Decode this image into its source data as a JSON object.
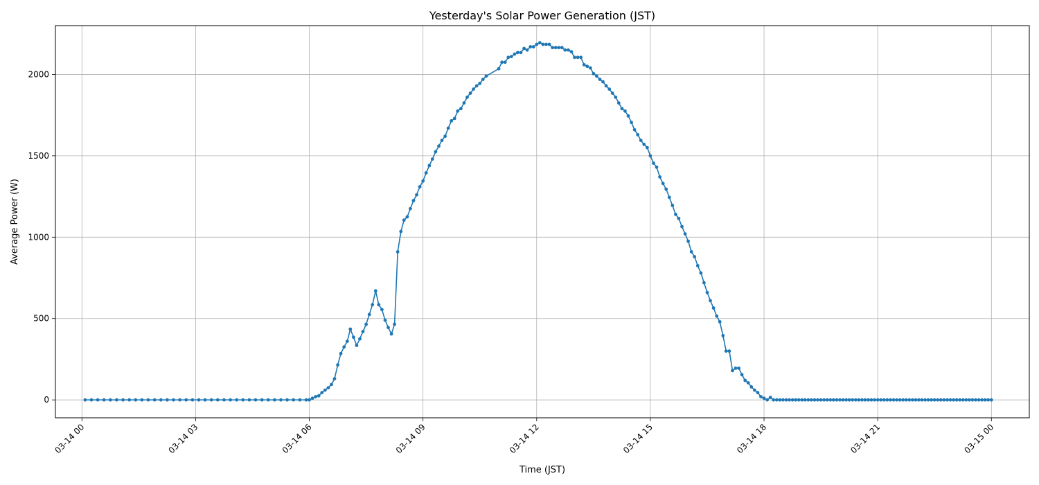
{
  "chart_data": {
    "type": "line",
    "title": "Yesterday's Solar Power Generation (JST)",
    "xlabel": "Time (JST)",
    "ylabel": "Average Power (W)",
    "x_unit": "hours on 03-14 (JST)",
    "xlim": [
      -0.7,
      25.0
    ],
    "ylim": [
      -110,
      2300
    ],
    "x_ticks": [
      {
        "value": 0,
        "label": "03-14 00"
      },
      {
        "value": 3,
        "label": "03-14 03"
      },
      {
        "value": 6,
        "label": "03-14 06"
      },
      {
        "value": 9,
        "label": "03-14 09"
      },
      {
        "value": 12,
        "label": "03-14 12"
      },
      {
        "value": 15,
        "label": "03-14 15"
      },
      {
        "value": 18,
        "label": "03-14 18"
      },
      {
        "value": 21,
        "label": "03-14 21"
      },
      {
        "value": 24,
        "label": "03-15 00"
      }
    ],
    "y_ticks": [
      0,
      500,
      1000,
      1500,
      2000
    ],
    "grid": true,
    "legend": "none",
    "color": "#1f77b4",
    "marker": "circle",
    "series": [
      {
        "points": [
          [
            0.0833,
            0
          ],
          [
            0.25,
            0
          ],
          [
            0.4167,
            0
          ],
          [
            0.5833,
            0
          ],
          [
            0.75,
            0
          ],
          [
            0.9167,
            0
          ],
          [
            1.0833,
            0
          ],
          [
            1.25,
            0
          ],
          [
            1.4167,
            0
          ],
          [
            1.5833,
            0
          ],
          [
            1.75,
            0
          ],
          [
            1.9167,
            0
          ],
          [
            2.0833,
            0
          ],
          [
            2.25,
            0
          ],
          [
            2.4167,
            0
          ],
          [
            2.5833,
            0
          ],
          [
            2.75,
            0
          ],
          [
            2.9167,
            0
          ],
          [
            3.0833,
            0
          ],
          [
            3.25,
            0
          ],
          [
            3.4167,
            0
          ],
          [
            3.5833,
            0
          ],
          [
            3.75,
            0
          ],
          [
            3.9167,
            0
          ],
          [
            4.0833,
            0
          ],
          [
            4.25,
            0
          ],
          [
            4.4167,
            0
          ],
          [
            4.5833,
            0
          ],
          [
            4.75,
            0
          ],
          [
            4.9167,
            0
          ],
          [
            5.0833,
            0
          ],
          [
            5.25,
            0
          ],
          [
            5.4167,
            0
          ],
          [
            5.5833,
            0
          ],
          [
            5.75,
            0
          ],
          [
            5.9167,
            0
          ],
          [
            6.0,
            0
          ],
          [
            6.0833,
            10
          ],
          [
            6.1667,
            20
          ],
          [
            6.25,
            25
          ],
          [
            6.3333,
            45
          ],
          [
            6.4167,
            60
          ],
          [
            6.5,
            75
          ],
          [
            6.5833,
            95
          ],
          [
            6.6667,
            130
          ],
          [
            6.75,
            215
          ],
          [
            6.8333,
            285
          ],
          [
            6.9167,
            325
          ],
          [
            7.0,
            360
          ],
          [
            7.0833,
            435
          ],
          [
            7.1667,
            385
          ],
          [
            7.25,
            335
          ],
          [
            7.3333,
            375
          ],
          [
            7.4167,
            420
          ],
          [
            7.5,
            465
          ],
          [
            7.5833,
            525
          ],
          [
            7.6667,
            585
          ],
          [
            7.75,
            670
          ],
          [
            7.8333,
            585
          ],
          [
            7.9167,
            555
          ],
          [
            8.0,
            490
          ],
          [
            8.0833,
            445
          ],
          [
            8.1667,
            405
          ],
          [
            8.25,
            465
          ],
          [
            8.3333,
            910
          ],
          [
            8.4167,
            1035
          ],
          [
            8.5,
            1105
          ],
          [
            8.5833,
            1125
          ],
          [
            8.6667,
            1175
          ],
          [
            8.75,
            1225
          ],
          [
            8.8333,
            1260
          ],
          [
            8.9167,
            1310
          ],
          [
            9.0,
            1345
          ],
          [
            9.0833,
            1395
          ],
          [
            9.1667,
            1440
          ],
          [
            9.25,
            1480
          ],
          [
            9.3333,
            1525
          ],
          [
            9.4167,
            1560
          ],
          [
            9.5,
            1595
          ],
          [
            9.5833,
            1620
          ],
          [
            9.6667,
            1670
          ],
          [
            9.75,
            1715
          ],
          [
            9.8333,
            1730
          ],
          [
            9.9167,
            1775
          ],
          [
            10.0,
            1790
          ],
          [
            10.0833,
            1825
          ],
          [
            10.1667,
            1860
          ],
          [
            10.25,
            1885
          ],
          [
            10.3333,
            1910
          ],
          [
            10.4167,
            1930
          ],
          [
            10.5,
            1945
          ],
          [
            10.5833,
            1970
          ],
          [
            10.6667,
            1990
          ],
          [
            11.0,
            2035
          ],
          [
            11.0833,
            2075
          ],
          [
            11.1667,
            2075
          ],
          [
            11.25,
            2105
          ],
          [
            11.3333,
            2110
          ],
          [
            11.4167,
            2125
          ],
          [
            11.5,
            2135
          ],
          [
            11.5833,
            2135
          ],
          [
            11.6667,
            2160
          ],
          [
            11.75,
            2150
          ],
          [
            11.8333,
            2170
          ],
          [
            11.9167,
            2170
          ],
          [
            12.0,
            2185
          ],
          [
            12.0833,
            2195
          ],
          [
            12.1667,
            2185
          ],
          [
            12.25,
            2185
          ],
          [
            12.3333,
            2185
          ],
          [
            12.4167,
            2165
          ],
          [
            12.5,
            2165
          ],
          [
            12.5833,
            2165
          ],
          [
            12.6667,
            2165
          ],
          [
            12.75,
            2150
          ],
          [
            12.8333,
            2150
          ],
          [
            12.9167,
            2140
          ],
          [
            13.0,
            2105
          ],
          [
            13.0833,
            2105
          ],
          [
            13.1667,
            2105
          ],
          [
            13.25,
            2060
          ],
          [
            13.3333,
            2050
          ],
          [
            13.4167,
            2040
          ],
          [
            13.5,
            2005
          ],
          [
            13.5833,
            1990
          ],
          [
            13.6667,
            1970
          ],
          [
            13.75,
            1955
          ],
          [
            13.8333,
            1930
          ],
          [
            13.9167,
            1910
          ],
          [
            14.0,
            1885
          ],
          [
            14.0833,
            1860
          ],
          [
            14.1667,
            1825
          ],
          [
            14.25,
            1790
          ],
          [
            14.3333,
            1775
          ],
          [
            14.4167,
            1745
          ],
          [
            14.5,
            1705
          ],
          [
            14.5833,
            1660
          ],
          [
            14.6667,
            1630
          ],
          [
            14.75,
            1595
          ],
          [
            14.8333,
            1570
          ],
          [
            14.9167,
            1550
          ],
          [
            15.0,
            1500
          ],
          [
            15.0833,
            1455
          ],
          [
            15.1667,
            1430
          ],
          [
            15.25,
            1370
          ],
          [
            15.3333,
            1330
          ],
          [
            15.4167,
            1295
          ],
          [
            15.5,
            1245
          ],
          [
            15.5833,
            1195
          ],
          [
            15.6667,
            1140
          ],
          [
            15.75,
            1115
          ],
          [
            15.8333,
            1065
          ],
          [
            15.9167,
            1020
          ],
          [
            16.0,
            975
          ],
          [
            16.0833,
            910
          ],
          [
            16.1667,
            880
          ],
          [
            16.25,
            825
          ],
          [
            16.3333,
            780
          ],
          [
            16.4167,
            720
          ],
          [
            16.5,
            660
          ],
          [
            16.5833,
            610
          ],
          [
            16.6667,
            565
          ],
          [
            16.75,
            515
          ],
          [
            16.8333,
            480
          ],
          [
            16.9167,
            395
          ],
          [
            17.0,
            300
          ],
          [
            17.0833,
            300
          ],
          [
            17.1667,
            180
          ],
          [
            17.25,
            195
          ],
          [
            17.3333,
            195
          ],
          [
            17.4167,
            155
          ],
          [
            17.5,
            120
          ],
          [
            17.5833,
            105
          ],
          [
            17.6667,
            80
          ],
          [
            17.75,
            60
          ],
          [
            17.8333,
            45
          ],
          [
            17.9167,
            20
          ],
          [
            18.0,
            10
          ],
          [
            18.0833,
            0
          ],
          [
            18.1667,
            15
          ],
          [
            18.25,
            0
          ],
          [
            18.3333,
            0
          ],
          [
            18.4167,
            0
          ],
          [
            18.5,
            0
          ],
          [
            18.5833,
            0
          ],
          [
            18.6667,
            0
          ],
          [
            18.75,
            0
          ],
          [
            18.8333,
            0
          ],
          [
            18.9167,
            0
          ],
          [
            19.0,
            0
          ],
          [
            19.0833,
            0
          ],
          [
            19.1667,
            0
          ],
          [
            19.25,
            0
          ],
          [
            19.3333,
            0
          ],
          [
            19.4167,
            0
          ],
          [
            19.5,
            0
          ],
          [
            19.5833,
            0
          ],
          [
            19.6667,
            0
          ],
          [
            19.75,
            0
          ],
          [
            19.8333,
            0
          ],
          [
            19.9167,
            0
          ],
          [
            20.0,
            0
          ],
          [
            20.0833,
            0
          ],
          [
            20.1667,
            0
          ],
          [
            20.25,
            0
          ],
          [
            20.3333,
            0
          ],
          [
            20.4167,
            0
          ],
          [
            20.5,
            0
          ],
          [
            20.5833,
            0
          ],
          [
            20.6667,
            0
          ],
          [
            20.75,
            0
          ],
          [
            20.8333,
            0
          ],
          [
            20.9167,
            0
          ],
          [
            21.0,
            0
          ],
          [
            21.0833,
            0
          ],
          [
            21.1667,
            0
          ],
          [
            21.25,
            0
          ],
          [
            21.3333,
            0
          ],
          [
            21.4167,
            0
          ],
          [
            21.5,
            0
          ],
          [
            21.5833,
            0
          ],
          [
            21.6667,
            0
          ],
          [
            21.75,
            0
          ],
          [
            21.8333,
            0
          ],
          [
            21.9167,
            0
          ],
          [
            22.0,
            0
          ],
          [
            22.0833,
            0
          ],
          [
            22.1667,
            0
          ],
          [
            22.25,
            0
          ],
          [
            22.3333,
            0
          ],
          [
            22.4167,
            0
          ],
          [
            22.5,
            0
          ],
          [
            22.5833,
            0
          ],
          [
            22.6667,
            0
          ],
          [
            22.75,
            0
          ],
          [
            22.8333,
            0
          ],
          [
            22.9167,
            0
          ],
          [
            23.0,
            0
          ],
          [
            23.0833,
            0
          ],
          [
            23.1667,
            0
          ],
          [
            23.25,
            0
          ],
          [
            23.3333,
            0
          ],
          [
            23.4167,
            0
          ],
          [
            23.5,
            0
          ],
          [
            23.5833,
            0
          ],
          [
            23.6667,
            0
          ],
          [
            23.75,
            0
          ],
          [
            23.8333,
            0
          ],
          [
            23.9167,
            0
          ],
          [
            24.0,
            0
          ]
        ]
      }
    ]
  }
}
